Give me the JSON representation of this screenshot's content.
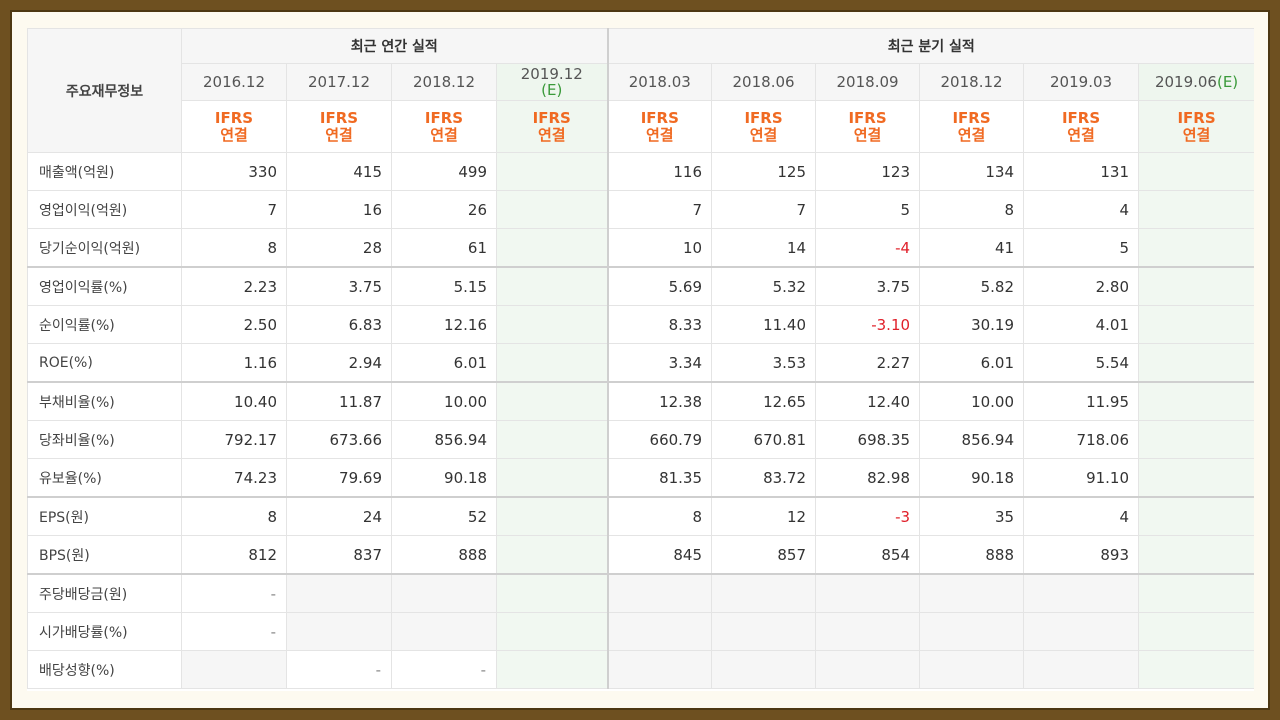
{
  "header": {
    "corner": "주요재무정보",
    "annual_group": "최근 연간 실적",
    "quarter_group": "최근 분기 실적",
    "tag_line1": "IFRS",
    "tag_line2": "연결",
    "est_mark": "(E)"
  },
  "periods": {
    "annual": [
      "2016.12",
      "2017.12",
      "2018.12",
      "2019.12"
    ],
    "quarter": [
      "2018.03",
      "2018.06",
      "2018.09",
      "2018.12",
      "2019.03",
      "2019.06"
    ]
  },
  "rows": [
    {
      "label": "매출액(억원)",
      "values": [
        "330",
        "415",
        "499",
        "",
        "116",
        "125",
        "123",
        "134",
        "131",
        ""
      ]
    },
    {
      "label": "영업이익(억원)",
      "values": [
        "7",
        "16",
        "26",
        "",
        "7",
        "7",
        "5",
        "8",
        "4",
        ""
      ]
    },
    {
      "label": "당기순이익(억원)",
      "values": [
        "8",
        "28",
        "61",
        "",
        "10",
        "14",
        "-4",
        "41",
        "5",
        ""
      ]
    },
    {
      "label": "영업이익률(%)",
      "values": [
        "2.23",
        "3.75",
        "5.15",
        "",
        "5.69",
        "5.32",
        "3.75",
        "5.82",
        "2.80",
        ""
      ]
    },
    {
      "label": "순이익률(%)",
      "values": [
        "2.50",
        "6.83",
        "12.16",
        "",
        "8.33",
        "11.40",
        "-3.10",
        "30.19",
        "4.01",
        ""
      ]
    },
    {
      "label": "ROE(%)",
      "values": [
        "1.16",
        "2.94",
        "6.01",
        "",
        "3.34",
        "3.53",
        "2.27",
        "6.01",
        "5.54",
        ""
      ]
    },
    {
      "label": "부채비율(%)",
      "values": [
        "10.40",
        "11.87",
        "10.00",
        "",
        "12.38",
        "12.65",
        "12.40",
        "10.00",
        "11.95",
        ""
      ]
    },
    {
      "label": "당좌비율(%)",
      "values": [
        "792.17",
        "673.66",
        "856.94",
        "",
        "660.79",
        "670.81",
        "698.35",
        "856.94",
        "718.06",
        ""
      ]
    },
    {
      "label": "유보율(%)",
      "values": [
        "74.23",
        "79.69",
        "90.18",
        "",
        "81.35",
        "83.72",
        "82.98",
        "90.18",
        "91.10",
        ""
      ]
    },
    {
      "label": "EPS(원)",
      "values": [
        "8",
        "24",
        "52",
        "",
        "8",
        "12",
        "-3",
        "35",
        "4",
        ""
      ]
    },
    {
      "label": "BPS(원)",
      "values": [
        "812",
        "837",
        "888",
        "",
        "845",
        "857",
        "854",
        "888",
        "893",
        ""
      ]
    },
    {
      "label": "주당배당금(원)",
      "values": [
        "-",
        "",
        "",
        "",
        "",
        "",
        "",
        "",
        "",
        ""
      ]
    },
    {
      "label": "시가배당률(%)",
      "values": [
        "-",
        "",
        "",
        "",
        "",
        "",
        "",
        "",
        "",
        ""
      ]
    },
    {
      "label": "배당성향(%)",
      "values": [
        "",
        "-",
        "-",
        "",
        "",
        "",
        "",
        "",
        "",
        ""
      ]
    }
  ],
  "colors": {
    "frame": "#6e5020",
    "ifrs": "#f06a22",
    "negative": "#e0202a",
    "estimate_bg": "#f1f8f1"
  }
}
